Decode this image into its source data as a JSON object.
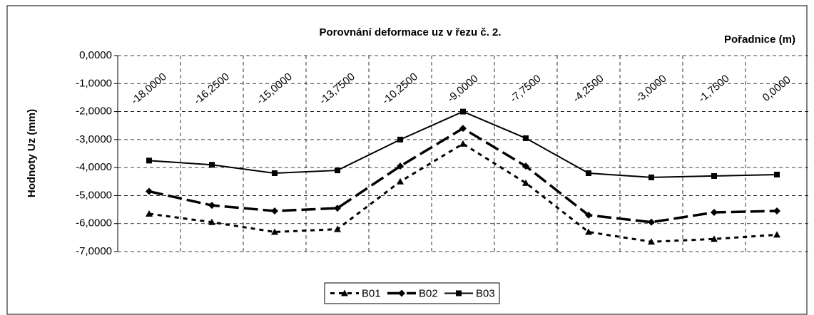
{
  "chart_data": {
    "type": "line",
    "title": "Porovnání deformace uz  v řezu č. 2.",
    "x_label": "Pořadnice (m)",
    "y_label": "Hodnoty Uz (mm)",
    "categories": [
      "-18,0000",
      "-16,2500",
      "-15,0000",
      "-13,7500",
      "-10,2500",
      "-9,0000",
      "-7,7500",
      "-4,2500",
      "-3,0000",
      "-1,7500",
      "0,0000"
    ],
    "series": [
      {
        "name": "B01",
        "color": "#000000",
        "dash": "dashed",
        "marker": "triangle",
        "values": [
          -5.65,
          -5.95,
          -6.3,
          -6.2,
          -4.5,
          -3.15,
          -4.55,
          -6.3,
          -6.65,
          -6.55,
          -6.4
        ]
      },
      {
        "name": "B02",
        "color": "#000000",
        "dash": "long-dashed",
        "marker": "diamond",
        "values": [
          -4.85,
          -5.35,
          -5.55,
          -5.45,
          -3.95,
          -2.6,
          -3.95,
          -5.7,
          -5.95,
          -5.6,
          -5.55
        ]
      },
      {
        "name": "B03",
        "color": "#000000",
        "dash": "solid",
        "marker": "square",
        "values": [
          -3.75,
          -3.9,
          -4.2,
          -4.1,
          -3.0,
          -2.0,
          -2.95,
          -4.2,
          -4.35,
          -4.3,
          -4.25
        ]
      }
    ],
    "ylim": [
      -7,
      0
    ],
    "yticks": [
      {
        "value": 0,
        "label": "0,0000"
      },
      {
        "value": -1,
        "label": "-1,0000"
      },
      {
        "value": -2,
        "label": "-2,0000"
      },
      {
        "value": -3,
        "label": "-3,0000"
      },
      {
        "value": -4,
        "label": "-4,0000"
      },
      {
        "value": -5,
        "label": "-5,0000"
      },
      {
        "value": -6,
        "label": "-6,0000"
      },
      {
        "value": -7,
        "label": "-7,0000"
      }
    ],
    "grid": true,
    "legend": "bottom"
  }
}
